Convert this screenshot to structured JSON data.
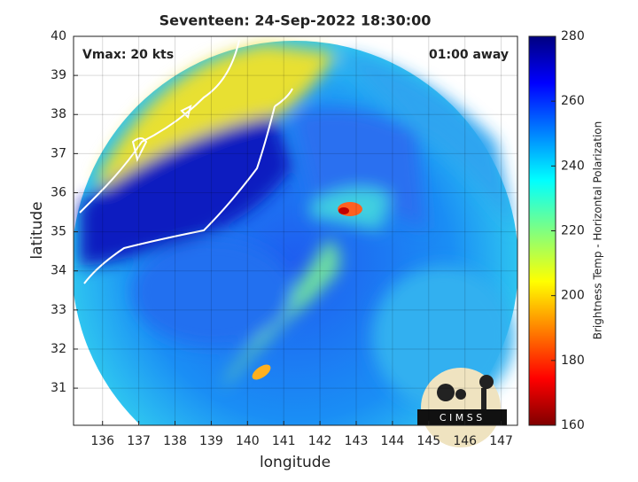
{
  "chart_data": {
    "type": "map",
    "title": "Seventeen: 24-Sep-2022 18:30:00",
    "x_label": "longitude",
    "y_label": "latitude",
    "xlim": [
      135.2,
      147.45
    ],
    "ylim": [
      30.05,
      40
    ],
    "xticks": [
      136,
      137,
      138,
      139,
      140,
      141,
      142,
      143,
      144,
      145,
      146,
      147
    ],
    "yticks": [
      31,
      32,
      33,
      34,
      35,
      36,
      37,
      38,
      39,
      40
    ],
    "grid": true,
    "annotations": [
      "Vmax: 20 kts",
      "01:00 away"
    ],
    "colorbar": {
      "label": "Brightness Temp - Horizontal Polarization",
      "lim": [
        160,
        280
      ],
      "ticks": [
        160,
        180,
        200,
        220,
        240,
        260,
        280
      ]
    },
    "logo": "C I M S S"
  }
}
